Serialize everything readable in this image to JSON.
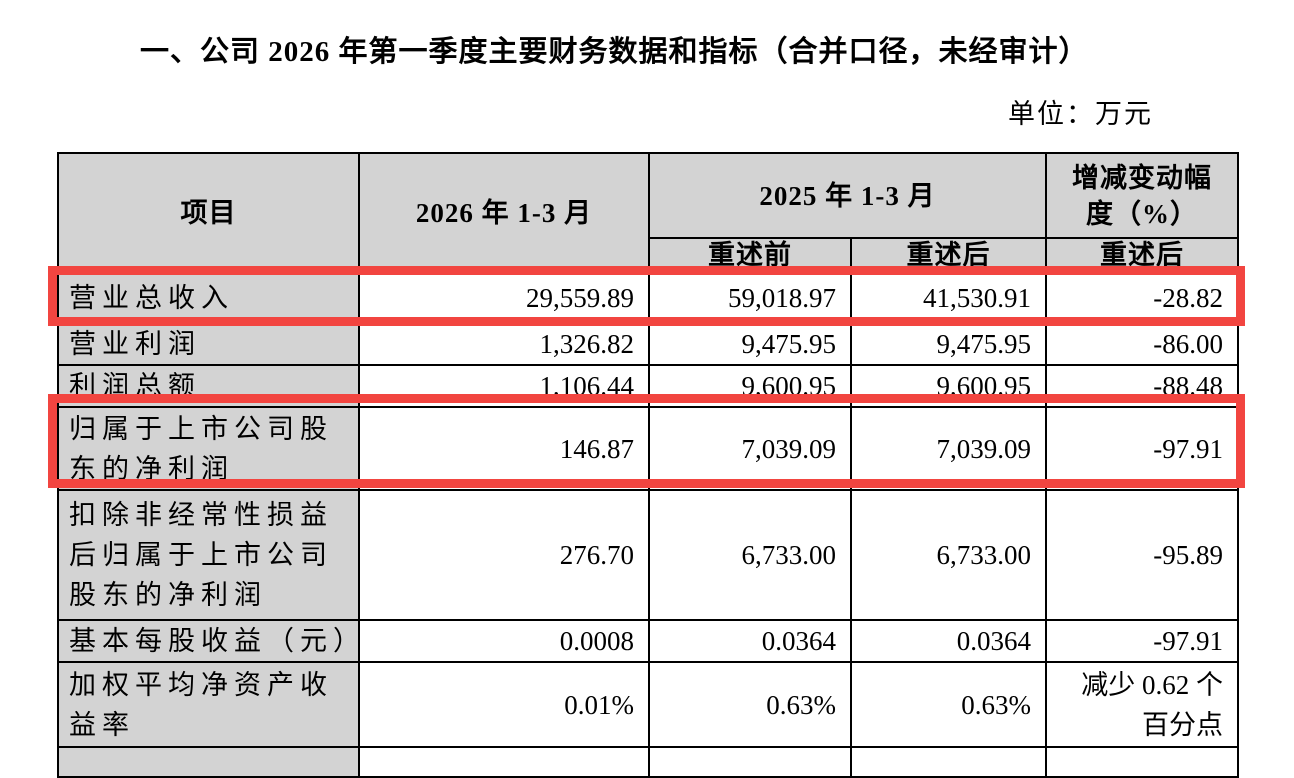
{
  "page": {
    "title": "一、公司 2026 年第一季度主要财务数据和指标（合并口径，未经审计）",
    "unit_note": "单位：万元"
  },
  "table": {
    "headers": {
      "item": "项目",
      "period_2026": "2026 年 1-3 月",
      "period_2025": "2025 年 1-3 月",
      "restated_before": "重述前",
      "restated_after": "重述后",
      "change_pct": "增减变动幅\n度（%）",
      "change_sub": "重述后"
    },
    "rows": [
      {
        "label": "营业总收入",
        "v2026": "29,559.89",
        "before": "59,018.97",
        "after": "41,530.91",
        "change": "-28.82",
        "highlighted": true
      },
      {
        "label": "营业利润",
        "v2026": "1,326.82",
        "before": "9,475.95",
        "after": "9,475.95",
        "change": "-86.00",
        "highlighted": false
      },
      {
        "label": "利润总额",
        "v2026": "1,106.44",
        "before": "9,600.95",
        "after": "9,600.95",
        "change": "-88.48",
        "highlighted": false
      },
      {
        "label": "归属于上市公司股\n东的净利润",
        "v2026": "146.87",
        "before": "7,039.09",
        "after": "7,039.09",
        "change": "-97.91",
        "highlighted": true
      },
      {
        "label": "扣除非经常性损益\n后归属于上市公司\n股东的净利润",
        "v2026": "276.70",
        "before": "6,733.00",
        "after": "6,733.00",
        "change": "-95.89",
        "highlighted": false
      },
      {
        "label": "基本每股收益（元）",
        "v2026": "0.0008",
        "before": "0.0364",
        "after": "0.0364",
        "change": "-97.91",
        "highlighted": false
      },
      {
        "label": "加权平均净资产收\n益率",
        "v2026": "0.01%",
        "before": "0.63%",
        "after": "0.63%",
        "change": "减少 0.62 个\n百分点",
        "highlighted": false
      },
      {
        "label": "",
        "v2026": "",
        "before": "",
        "after": "",
        "change": "",
        "highlighted": false,
        "partial": true
      }
    ]
  },
  "colors": {
    "highlight_red": "#f24540",
    "cell_gray": "#d3d3d3"
  }
}
